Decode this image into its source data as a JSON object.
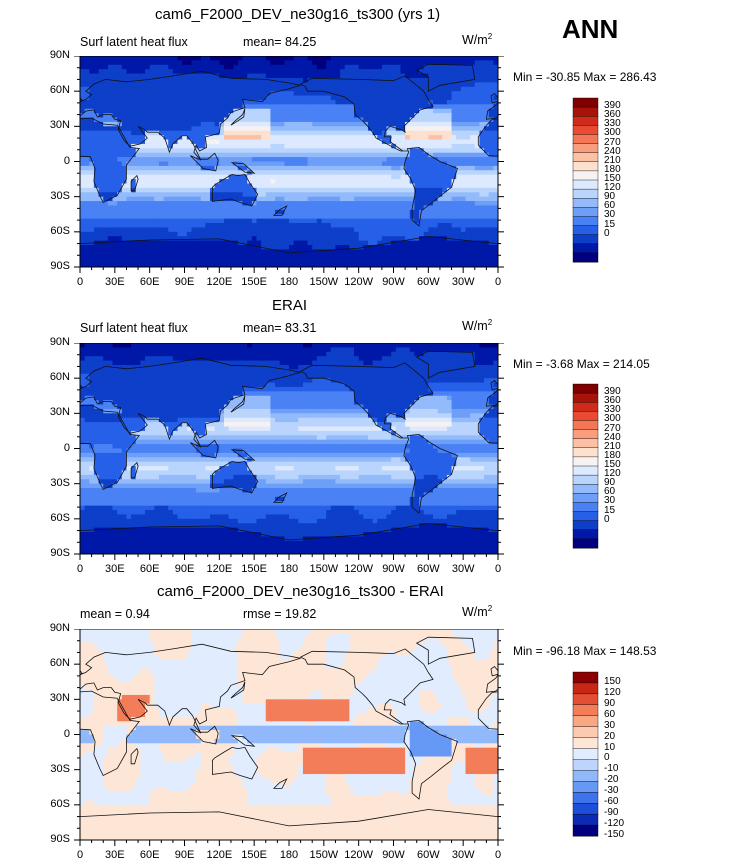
{
  "annual_label": "ANN",
  "colormaps": {
    "abs": [
      "#00007f",
      "#0018a8",
      "#0d3fc9",
      "#2660e8",
      "#4a82f5",
      "#6e9ff8",
      "#93bbfb",
      "#bad5fd",
      "#dde9fe",
      "#f6f2f2",
      "#fde0cd",
      "#fcc0a4",
      "#f99d7c",
      "#f47655",
      "#e84a32",
      "#d02a1b",
      "#a81309",
      "#800000"
    ],
    "diff": [
      "#00007f",
      "#0b2bb5",
      "#1e4fd9",
      "#3d74ee",
      "#6698f6",
      "#90b8fa",
      "#bdd5fd",
      "#e1ecfe",
      "#fde6d6",
      "#fccaae",
      "#f9a683",
      "#f37d59",
      "#e44f33",
      "#c72714",
      "#8b0000"
    ]
  },
  "chart_data": [
    {
      "type": "heatmap",
      "title": "cam6_F2000_DEV_ne30g16_ts300 (yrs 1)",
      "variable": "Surf latent heat flux",
      "stat_label": "mean=",
      "stat_value": "84.25",
      "units_base": "W/m",
      "units_exp": "2",
      "min_label": "Min = -30.85",
      "max_label": "Max = 286.43",
      "min": -30.85,
      "max": 286.43,
      "colormap": "abs",
      "levels": [
        "390",
        "360",
        "330",
        "300",
        "270",
        "240",
        "210",
        "180",
        "150",
        "120",
        "90",
        "60",
        "30",
        "15",
        "0"
      ],
      "lat_ticks": [
        "90N",
        "60N",
        "30N",
        "0",
        "30S",
        "60S",
        "90S"
      ],
      "lon_ticks": [
        "0",
        "30E",
        "60E",
        "90E",
        "120E",
        "150E",
        "180",
        "150W",
        "120W",
        "90W",
        "60W",
        "30W",
        "0"
      ],
      "xlim": [
        0,
        360
      ],
      "ylim": [
        -90,
        90
      ]
    },
    {
      "type": "heatmap",
      "title": "ERAI",
      "variable": "Surf latent heat flux",
      "stat_label": "mean=",
      "stat_value": "83.31",
      "units_base": "W/m",
      "units_exp": "2",
      "min_label": "Min = -3.68",
      "max_label": "Max = 214.05",
      "min": -3.68,
      "max": 214.05,
      "colormap": "abs",
      "levels": [
        "390",
        "360",
        "330",
        "300",
        "270",
        "240",
        "210",
        "180",
        "150",
        "120",
        "90",
        "60",
        "30",
        "15",
        "0"
      ],
      "lat_ticks": [
        "90N",
        "60N",
        "30N",
        "0",
        "30S",
        "60S",
        "90S"
      ],
      "lon_ticks": [
        "0",
        "30E",
        "60E",
        "90E",
        "120E",
        "150E",
        "180",
        "150W",
        "120W",
        "90W",
        "60W",
        "30W",
        "0"
      ],
      "xlim": [
        0,
        360
      ],
      "ylim": [
        -90,
        90
      ]
    },
    {
      "type": "heatmap",
      "title": "cam6_F2000_DEV_ne30g16_ts300 - ERAI",
      "variable": "",
      "stat_label": "mean =",
      "stat_value": "0.94",
      "stat2_label": "rmse =",
      "stat2_value": "19.82",
      "units_base": "W/m",
      "units_exp": "2",
      "min_label": "Min = -96.18",
      "max_label": "Max = 148.53",
      "min": -96.18,
      "max": 148.53,
      "colormap": "diff",
      "levels": [
        "150",
        "120",
        "90",
        "60",
        "30",
        "20",
        "10",
        "0",
        "-10",
        "-20",
        "-30",
        "-60",
        "-90",
        "-120",
        "-150"
      ],
      "lat_ticks": [
        "90N",
        "60N",
        "30N",
        "0",
        "30S",
        "60S",
        "90S"
      ],
      "lon_ticks": [
        "0",
        "30E",
        "60E",
        "90E",
        "120E",
        "150E",
        "180",
        "150W",
        "120W",
        "90W",
        "60W",
        "30W",
        "0"
      ],
      "xlim": [
        0,
        360
      ],
      "ylim": [
        -90,
        90
      ]
    }
  ]
}
